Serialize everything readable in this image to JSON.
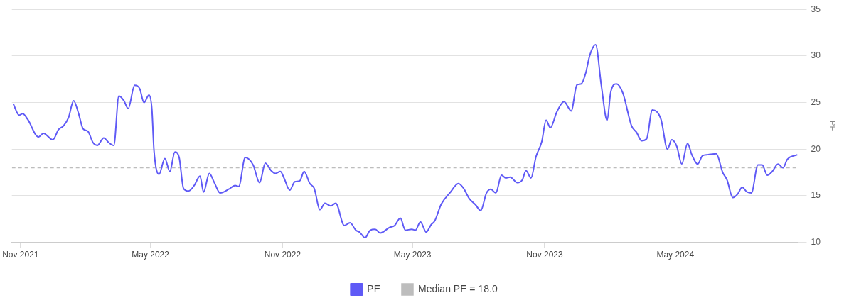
{
  "chart_data": {
    "type": "line",
    "ylabel": "PE",
    "x": [
      "2021-10-22",
      "2021-10-30",
      "2021-11-04",
      "2021-11-11",
      "2021-11-26",
      "2021-12-03",
      "2021-12-16",
      "2021-12-24",
      "2021-12-31",
      "2022-01-07",
      "2022-01-14",
      "2022-01-21",
      "2022-01-27",
      "2022-02-03",
      "2022-02-10",
      "2022-02-16",
      "2022-02-25",
      "2022-03-04",
      "2022-03-11",
      "2022-03-18",
      "2022-03-25",
      "2022-03-31",
      "2022-04-09",
      "2022-04-16",
      "2022-04-22",
      "2022-04-29",
      "2022-05-03",
      "2022-05-06",
      "2022-05-13",
      "2022-05-21",
      "2022-05-28",
      "2022-06-04",
      "2022-06-10",
      "2022-06-16",
      "2022-06-23",
      "2022-07-01",
      "2022-07-09",
      "2022-07-14",
      "2022-07-22",
      "2022-07-29",
      "2022-08-06",
      "2022-08-18",
      "2022-08-27",
      "2022-09-01",
      "2022-09-10",
      "2022-09-21",
      "2022-09-30",
      "2022-10-08",
      "2022-10-16",
      "2022-10-22",
      "2022-10-29",
      "2022-11-03",
      "2022-11-11",
      "2022-11-18",
      "2022-11-25",
      "2022-12-01",
      "2022-12-09",
      "2022-12-15",
      "2022-12-23",
      "2022-12-30",
      "2023-01-07",
      "2023-01-14",
      "2023-01-26",
      "2023-02-03",
      "2023-02-11",
      "2023-02-16",
      "2023-02-24",
      "2023-03-03",
      "2023-03-10",
      "2023-03-17",
      "2023-03-30",
      "2023-04-06",
      "2023-04-14",
      "2023-04-21",
      "2023-04-30",
      "2023-05-05",
      "2023-05-12",
      "2023-05-20",
      "2023-05-27",
      "2023-06-01",
      "2023-06-10",
      "2023-06-22",
      "2023-07-04",
      "2023-07-11",
      "2023-07-19",
      "2023-07-28",
      "2023-08-04",
      "2023-08-12",
      "2023-08-18",
      "2023-08-25",
      "2023-09-02",
      "2023-09-08",
      "2023-09-14",
      "2023-09-24",
      "2023-10-01",
      "2023-10-06",
      "2023-10-13",
      "2023-10-20",
      "2023-10-28",
      "2023-11-03",
      "2023-11-09",
      "2023-11-18",
      "2023-11-28",
      "2023-12-08",
      "2023-12-16",
      "2023-12-22",
      "2023-12-28",
      "2024-01-03",
      "2024-01-11",
      "2024-01-19",
      "2024-01-27",
      "2024-02-01",
      "2024-02-09",
      "2024-02-18",
      "2024-03-01",
      "2024-03-08",
      "2024-03-15",
      "2024-03-22",
      "2024-03-30",
      "2024-04-11",
      "2024-04-20",
      "2024-04-26",
      "2024-05-03",
      "2024-05-10",
      "2024-05-18",
      "2024-05-24",
      "2024-06-01",
      "2024-06-08",
      "2024-06-15",
      "2024-06-27",
      "2024-07-06",
      "2024-07-12",
      "2024-07-20",
      "2024-07-27",
      "2024-08-02",
      "2024-08-09",
      "2024-08-15",
      "2024-08-24",
      "2024-08-30",
      "2024-09-06",
      "2024-09-13",
      "2024-09-21",
      "2024-09-28",
      "2024-10-04",
      "2024-10-18"
    ],
    "series": [
      {
        "name": "PE",
        "color": "#5f5af6",
        "values": [
          24.85,
          23.65,
          23.8,
          23.2,
          21.3,
          21.7,
          21.0,
          22.1,
          22.5,
          23.4,
          25.2,
          23.8,
          22.2,
          21.9,
          20.7,
          20.4,
          21.2,
          20.7,
          20.4,
          25.7,
          25.2,
          24.35,
          26.85,
          26.5,
          25.0,
          25.8,
          24.3,
          19.8,
          17.3,
          19.0,
          17.6,
          19.7,
          19.1,
          15.8,
          15.5,
          16.1,
          17.1,
          15.4,
          17.4,
          16.4,
          15.3,
          15.7,
          16.1,
          16.0,
          19.1,
          18.3,
          16.4,
          18.5,
          17.7,
          17.4,
          17.6,
          16.9,
          15.6,
          16.5,
          16.6,
          17.6,
          16.3,
          15.8,
          13.5,
          14.2,
          13.9,
          14.2,
          11.8,
          12.1,
          11.3,
          11.1,
          10.5,
          11.3,
          11.4,
          11.0,
          11.6,
          11.8,
          12.6,
          11.3,
          11.4,
          11.3,
          12.2,
          11.1,
          11.9,
          12.3,
          14.1,
          15.3,
          16.3,
          15.8,
          14.7,
          14.0,
          13.4,
          15.3,
          15.7,
          15.3,
          17.2,
          16.9,
          17.0,
          16.4,
          16.7,
          17.7,
          16.9,
          19.2,
          20.8,
          23.1,
          22.3,
          24.0,
          25.1,
          24.1,
          26.9,
          27.0,
          28.1,
          30.1,
          31.2,
          26.8,
          23.1,
          26.1,
          27.0,
          26.0,
          22.5,
          21.8,
          20.9,
          21.1,
          24.2,
          23.2,
          20.0,
          21.0,
          20.3,
          18.4,
          20.6,
          19.4,
          18.4,
          19.3,
          19.4,
          19.5,
          17.5,
          16.7,
          14.8,
          15.2,
          15.9,
          15.4,
          15.3,
          18.3,
          18.3,
          17.2,
          17.6,
          18.4,
          18.0,
          18.9,
          19.4
        ]
      }
    ],
    "ref_lines": [
      {
        "axis": "y",
        "value": 18.0,
        "label": "Median PE = 18.0",
        "color": "#bdbdbd",
        "line_style": "dashed"
      }
    ],
    "xlim": [
      "2021-10-20",
      "2024-10-19"
    ],
    "xticks": [
      {
        "value": "2021-11-01",
        "label": "Nov 2021"
      },
      {
        "value": "2022-05-01",
        "label": "May 2022"
      },
      {
        "value": "2022-11-01",
        "label": "Nov 2022"
      },
      {
        "value": "2023-05-01",
        "label": "May 2023"
      },
      {
        "value": "2023-11-01",
        "label": "Nov 2023"
      },
      {
        "value": "2024-05-01",
        "label": "May 2024"
      }
    ],
    "ylim": [
      10,
      35
    ],
    "yticks": [
      10,
      15,
      20,
      25,
      30,
      35
    ],
    "grid": "y",
    "legend": "bottom",
    "marker": "none",
    "line_style": "solid"
  }
}
